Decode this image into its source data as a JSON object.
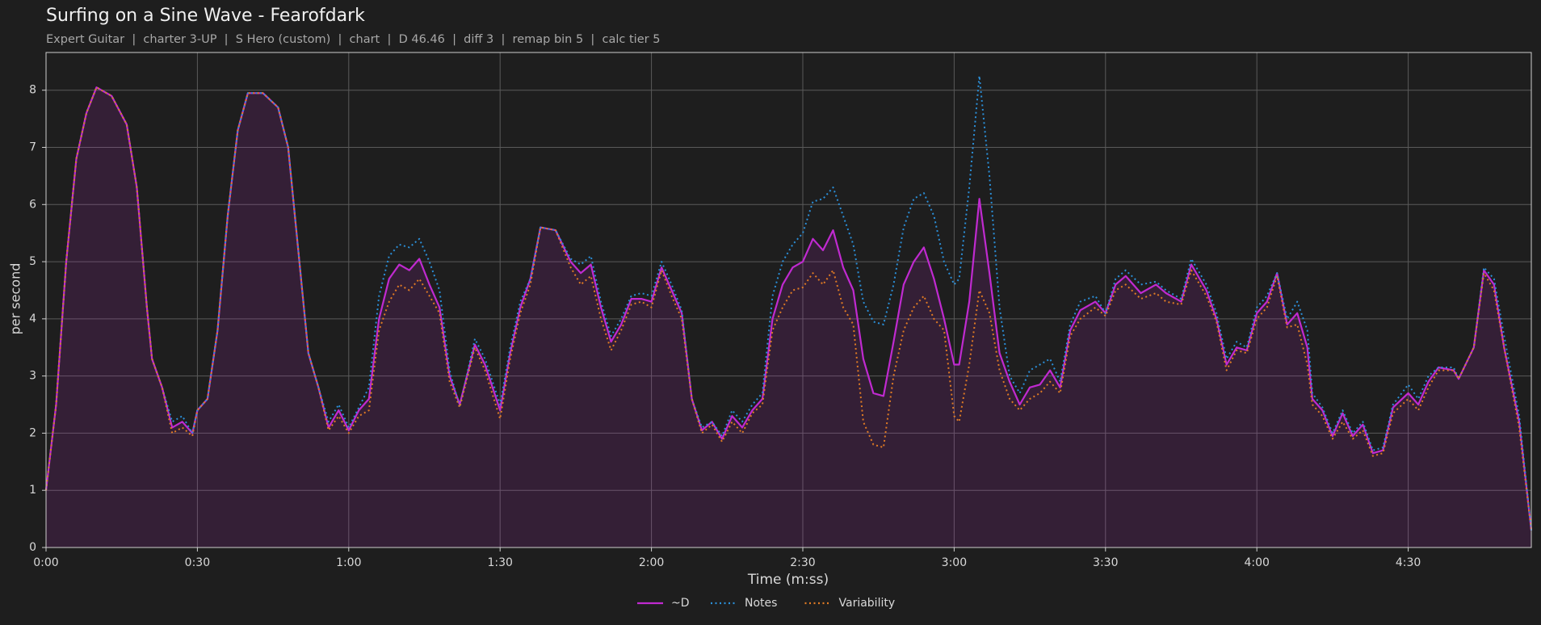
{
  "chart_data": {
    "type": "line",
    "title": "Surfing on a Sine Wave - Fearofdark",
    "subtitle": "Expert Guitar  |  charter 3-UP  |  S Hero (custom)  |  chart  |  D 46.46  |  diff 3  |  remap bin 5  |  calc tier 5",
    "xlabel": "Time (m:ss)",
    "ylabel": "per second",
    "x": [
      0,
      2,
      4,
      6,
      8,
      10,
      13,
      16,
      18,
      20,
      21,
      23,
      25,
      27,
      29,
      30,
      32,
      34,
      36,
      38,
      40,
      43,
      46,
      48,
      50,
      52,
      54,
      56,
      58,
      60,
      62,
      64,
      66,
      68,
      70,
      72,
      74,
      76,
      78,
      80,
      82,
      85,
      87,
      90,
      92,
      94,
      96,
      98,
      101,
      104,
      106,
      108,
      110,
      112,
      114,
      116,
      118,
      120,
      122,
      124,
      126,
      128,
      130,
      132,
      134,
      136,
      138,
      140,
      142,
      144,
      146,
      148,
      150,
      152,
      154,
      156,
      158,
      160,
      162,
      164,
      166,
      168,
      170,
      172,
      174,
      176,
      178,
      180,
      181,
      183,
      185,
      187,
      189,
      191,
      193,
      195,
      197,
      199,
      201,
      203,
      205,
      208,
      210,
      212,
      214,
      217,
      220,
      222,
      225,
      227,
      230,
      232,
      234,
      236,
      238,
      240,
      242,
      244,
      246,
      248,
      250,
      251,
      253,
      255,
      257,
      259,
      261,
      263,
      265,
      267,
      270,
      272,
      274,
      276,
      279,
      280,
      283,
      285,
      287,
      289,
      292,
      294.4
    ],
    "series": [
      {
        "name": "~D",
        "color": "#c02ad0",
        "line_style": "solid",
        "fill_area": true,
        "values": [
          1.0,
          2.5,
          5.0,
          6.8,
          7.6,
          8.05,
          7.9,
          7.4,
          6.3,
          4.2,
          3.3,
          2.8,
          2.1,
          2.2,
          2.0,
          2.4,
          2.6,
          3.8,
          5.8,
          7.3,
          7.95,
          7.95,
          7.7,
          7.0,
          5.2,
          3.4,
          2.8,
          2.1,
          2.4,
          2.05,
          2.4,
          2.6,
          4.0,
          4.7,
          4.95,
          4.85,
          5.05,
          4.6,
          4.2,
          3.0,
          2.5,
          3.55,
          3.2,
          2.4,
          3.4,
          4.2,
          4.7,
          5.6,
          5.55,
          5.0,
          4.8,
          4.95,
          4.2,
          3.6,
          3.9,
          4.35,
          4.35,
          4.3,
          4.9,
          4.5,
          4.1,
          2.6,
          2.05,
          2.2,
          1.9,
          2.3,
          2.1,
          2.4,
          2.6,
          4.0,
          4.6,
          4.9,
          5.0,
          5.4,
          5.2,
          5.55,
          4.9,
          4.5,
          3.3,
          2.7,
          2.65,
          3.6,
          4.6,
          5.0,
          5.25,
          4.7,
          4.0,
          3.2,
          3.2,
          4.3,
          6.1,
          4.8,
          3.4,
          2.9,
          2.5,
          2.8,
          2.85,
          3.1,
          2.8,
          3.8,
          4.15,
          4.3,
          4.1,
          4.6,
          4.75,
          4.45,
          4.6,
          4.45,
          4.3,
          4.95,
          4.5,
          4.0,
          3.2,
          3.5,
          3.45,
          4.1,
          4.3,
          4.8,
          3.9,
          4.1,
          3.5,
          2.6,
          2.4,
          1.95,
          2.35,
          1.95,
          2.15,
          1.65,
          1.7,
          2.45,
          2.7,
          2.5,
          2.9,
          3.15,
          3.1,
          2.95,
          3.5,
          4.85,
          4.6,
          3.5,
          2.2,
          0.3
        ]
      },
      {
        "name": "Notes",
        "color": "#2b8fd8",
        "line_style": "dotted",
        "fill_area": false,
        "values": [
          1.0,
          2.5,
          5.0,
          6.8,
          7.6,
          8.05,
          7.9,
          7.4,
          6.3,
          4.2,
          3.3,
          2.8,
          2.2,
          2.3,
          2.0,
          2.4,
          2.6,
          3.8,
          5.8,
          7.3,
          7.95,
          7.95,
          7.7,
          7.0,
          5.2,
          3.4,
          2.8,
          2.2,
          2.5,
          2.1,
          2.45,
          2.8,
          4.4,
          5.1,
          5.3,
          5.25,
          5.4,
          5.0,
          4.5,
          3.1,
          2.45,
          3.65,
          3.3,
          2.5,
          3.5,
          4.3,
          4.7,
          5.6,
          5.55,
          5.05,
          4.95,
          5.1,
          4.3,
          3.7,
          4.0,
          4.4,
          4.45,
          4.4,
          5.0,
          4.6,
          4.15,
          2.6,
          2.1,
          2.2,
          1.95,
          2.4,
          2.2,
          2.5,
          2.7,
          4.4,
          5.0,
          5.3,
          5.5,
          6.05,
          6.1,
          6.3,
          5.8,
          5.3,
          4.3,
          3.95,
          3.9,
          4.6,
          5.6,
          6.1,
          6.2,
          5.8,
          5.0,
          4.6,
          4.7,
          6.3,
          8.25,
          6.5,
          4.2,
          3.0,
          2.7,
          3.1,
          3.2,
          3.3,
          2.9,
          3.9,
          4.3,
          4.4,
          4.1,
          4.7,
          4.85,
          4.6,
          4.65,
          4.5,
          4.35,
          5.05,
          4.6,
          4.1,
          3.3,
          3.6,
          3.5,
          4.2,
          4.4,
          4.8,
          4.0,
          4.3,
          3.8,
          2.7,
          2.45,
          2.0,
          2.4,
          2.0,
          2.2,
          1.7,
          1.75,
          2.5,
          2.85,
          2.6,
          3.0,
          3.15,
          3.15,
          2.95,
          3.5,
          4.9,
          4.7,
          3.7,
          2.3,
          0.3
        ]
      },
      {
        "name": "Variability",
        "color": "#e07b24",
        "line_style": "dotted",
        "fill_area": false,
        "values": [
          1.0,
          2.5,
          5.0,
          6.8,
          7.6,
          8.05,
          7.9,
          7.4,
          6.3,
          4.2,
          3.3,
          2.8,
          2.0,
          2.1,
          1.95,
          2.4,
          2.6,
          3.8,
          5.8,
          7.3,
          7.95,
          7.95,
          7.7,
          7.0,
          5.2,
          3.4,
          2.8,
          2.05,
          2.3,
          2.0,
          2.3,
          2.4,
          3.8,
          4.3,
          4.6,
          4.5,
          4.7,
          4.4,
          4.1,
          2.9,
          2.45,
          3.5,
          3.1,
          2.25,
          3.3,
          4.1,
          4.6,
          5.6,
          5.55,
          4.9,
          4.6,
          4.75,
          4.0,
          3.45,
          3.8,
          4.25,
          4.3,
          4.2,
          4.85,
          4.4,
          4.0,
          2.6,
          2.0,
          2.15,
          1.85,
          2.2,
          2.0,
          2.35,
          2.5,
          3.8,
          4.2,
          4.5,
          4.55,
          4.8,
          4.6,
          4.85,
          4.2,
          3.9,
          2.2,
          1.8,
          1.75,
          3.0,
          3.8,
          4.2,
          4.4,
          4.0,
          3.8,
          2.3,
          2.2,
          3.2,
          4.5,
          4.1,
          3.1,
          2.6,
          2.4,
          2.6,
          2.7,
          2.9,
          2.7,
          3.7,
          4.0,
          4.2,
          4.05,
          4.5,
          4.6,
          4.35,
          4.45,
          4.3,
          4.25,
          4.85,
          4.4,
          3.95,
          3.1,
          3.45,
          3.4,
          4.0,
          4.2,
          4.75,
          3.85,
          3.9,
          3.2,
          2.5,
          2.3,
          1.9,
          2.2,
          1.9,
          2.05,
          1.6,
          1.65,
          2.35,
          2.6,
          2.4,
          2.8,
          3.1,
          3.1,
          2.95,
          3.5,
          4.8,
          4.5,
          3.5,
          2.1,
          0.3
        ]
      }
    ],
    "xlim": [
      0,
      294.4
    ],
    "ylim": [
      0,
      8.66
    ],
    "xticks": [
      {
        "value": 0,
        "label": "0:00"
      },
      {
        "value": 30,
        "label": "0:30"
      },
      {
        "value": 60,
        "label": "1:00"
      },
      {
        "value": 90,
        "label": "1:30"
      },
      {
        "value": 120,
        "label": "2:00"
      },
      {
        "value": 150,
        "label": "2:30"
      },
      {
        "value": 180,
        "label": "3:00"
      },
      {
        "value": 210,
        "label": "3:30"
      },
      {
        "value": 240,
        "label": "4:00"
      },
      {
        "value": 270,
        "label": "4:30"
      }
    ],
    "yticks": [
      0,
      1,
      2,
      3,
      4,
      5,
      6,
      7,
      8
    ],
    "grid": true,
    "legend": "bottom"
  }
}
